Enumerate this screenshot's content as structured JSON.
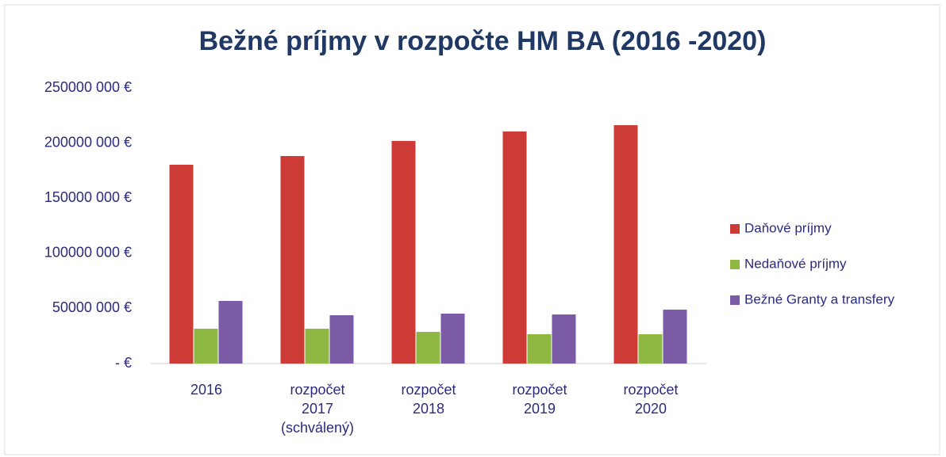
{
  "chart_data": {
    "type": "bar",
    "title": "Bežné príjmy v rozpočte HM BA (2016 -2020)",
    "categories": [
      "2016",
      "rozpočet 2017 (schválený)",
      "rozpočet 2018",
      "rozpočet 2019",
      "rozpočet 2020"
    ],
    "series": [
      {
        "name": "Daňové príjmy",
        "color": "#cc3b35",
        "values": [
          180300000,
          188200000,
          201900000,
          210500000,
          216200000
        ]
      },
      {
        "name": "Nedaňové príjmy",
        "color": "#8fb842",
        "values": [
          31600000,
          31600000,
          28700000,
          26600000,
          26600000
        ]
      },
      {
        "name": "Bežné Granty a transfery",
        "color": "#7b5aa6",
        "values": [
          56800000,
          43800000,
          45300000,
          44500000,
          48900000
        ]
      }
    ],
    "ylim": [
      0,
      250000000
    ],
    "yticks": [
      {
        "value": 0,
        "label": "-  €"
      },
      {
        "value": 50000000,
        "label": "50000 000 €"
      },
      {
        "value": 100000000,
        "label": "100000 000 €"
      },
      {
        "value": 150000000,
        "label": "150000 000 €"
      },
      {
        "value": 200000000,
        "label": "200000 000 €"
      },
      {
        "value": 250000000,
        "label": "250000 000 €"
      }
    ],
    "legend": "right"
  }
}
